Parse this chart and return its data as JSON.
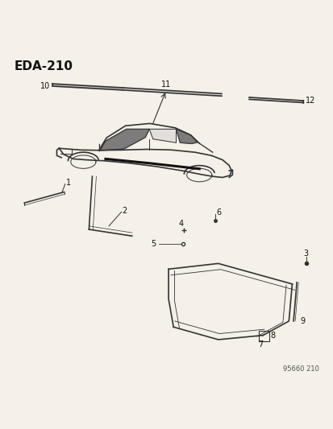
{
  "title": "EDA-210",
  "bg_color": "#f5f0e8",
  "line_color": "#333333",
  "text_color": "#111111",
  "footnote": "95660 210"
}
